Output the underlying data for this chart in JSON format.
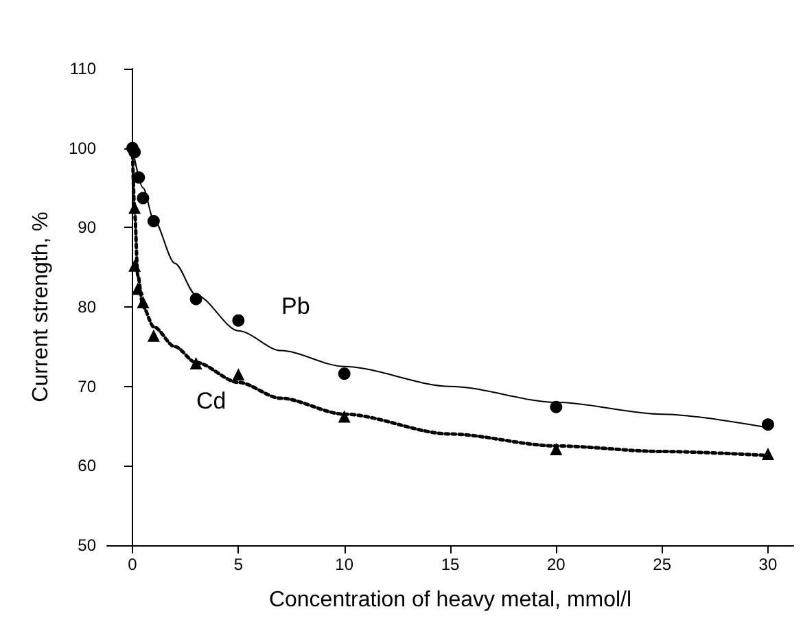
{
  "chart_data": {
    "type": "scatter",
    "xlabel": "Concentration of heavy metal, mmol/l",
    "ylabel": "Current strength, %",
    "xlim": [
      -1.2,
      31.2
    ],
    "xticks": [
      0,
      5,
      10,
      15,
      20,
      25,
      30
    ],
    "ylim": [
      50,
      110
    ],
    "yticks": [
      50,
      60,
      70,
      80,
      90,
      100,
      110
    ],
    "grid": false,
    "annotations": [
      "Pb",
      "Cd"
    ],
    "series": [
      {
        "marker": "circle",
        "color": "#000000",
        "x": [
          0,
          0.1,
          0.3,
          0.5,
          1,
          3,
          5,
          10,
          20,
          30
        ],
        "values": [
          100,
          99.5,
          96.3,
          93.7,
          90.8,
          81,
          78.3,
          71.6,
          67.4,
          65.2
        ]
      },
      {
        "marker": "triangle",
        "color": "#000000",
        "x": [
          0.1,
          0.1,
          0.25,
          0.5,
          1,
          3,
          5,
          10,
          20,
          30
        ],
        "values": [
          92.5,
          85.2,
          82.3,
          80.6,
          76.4,
          72.9,
          71.5,
          66.2,
          62.1,
          61.5
        ]
      },
      {
        "type": "line",
        "marker": "none",
        "line_style": "solid",
        "color": "#000000",
        "x": [
          0,
          0.5,
          1,
          2,
          3,
          5,
          7,
          10,
          15,
          20,
          25,
          30
        ],
        "values": [
          100,
          95,
          91,
          85.5,
          81.5,
          77,
          74.5,
          72.5,
          70,
          68,
          66.5,
          64.8
        ]
      },
      {
        "type": "line",
        "marker": "none",
        "line_style": "dotted",
        "color": "#000000",
        "x": [
          0,
          0.1,
          0.25,
          0.5,
          1,
          2,
          3,
          5,
          7,
          10,
          15,
          20,
          25,
          30
        ],
        "values": [
          100,
          92,
          84,
          80,
          77.5,
          75,
          73,
          70.5,
          68.5,
          66.5,
          64,
          62.5,
          61.8,
          61.3
        ]
      }
    ]
  }
}
